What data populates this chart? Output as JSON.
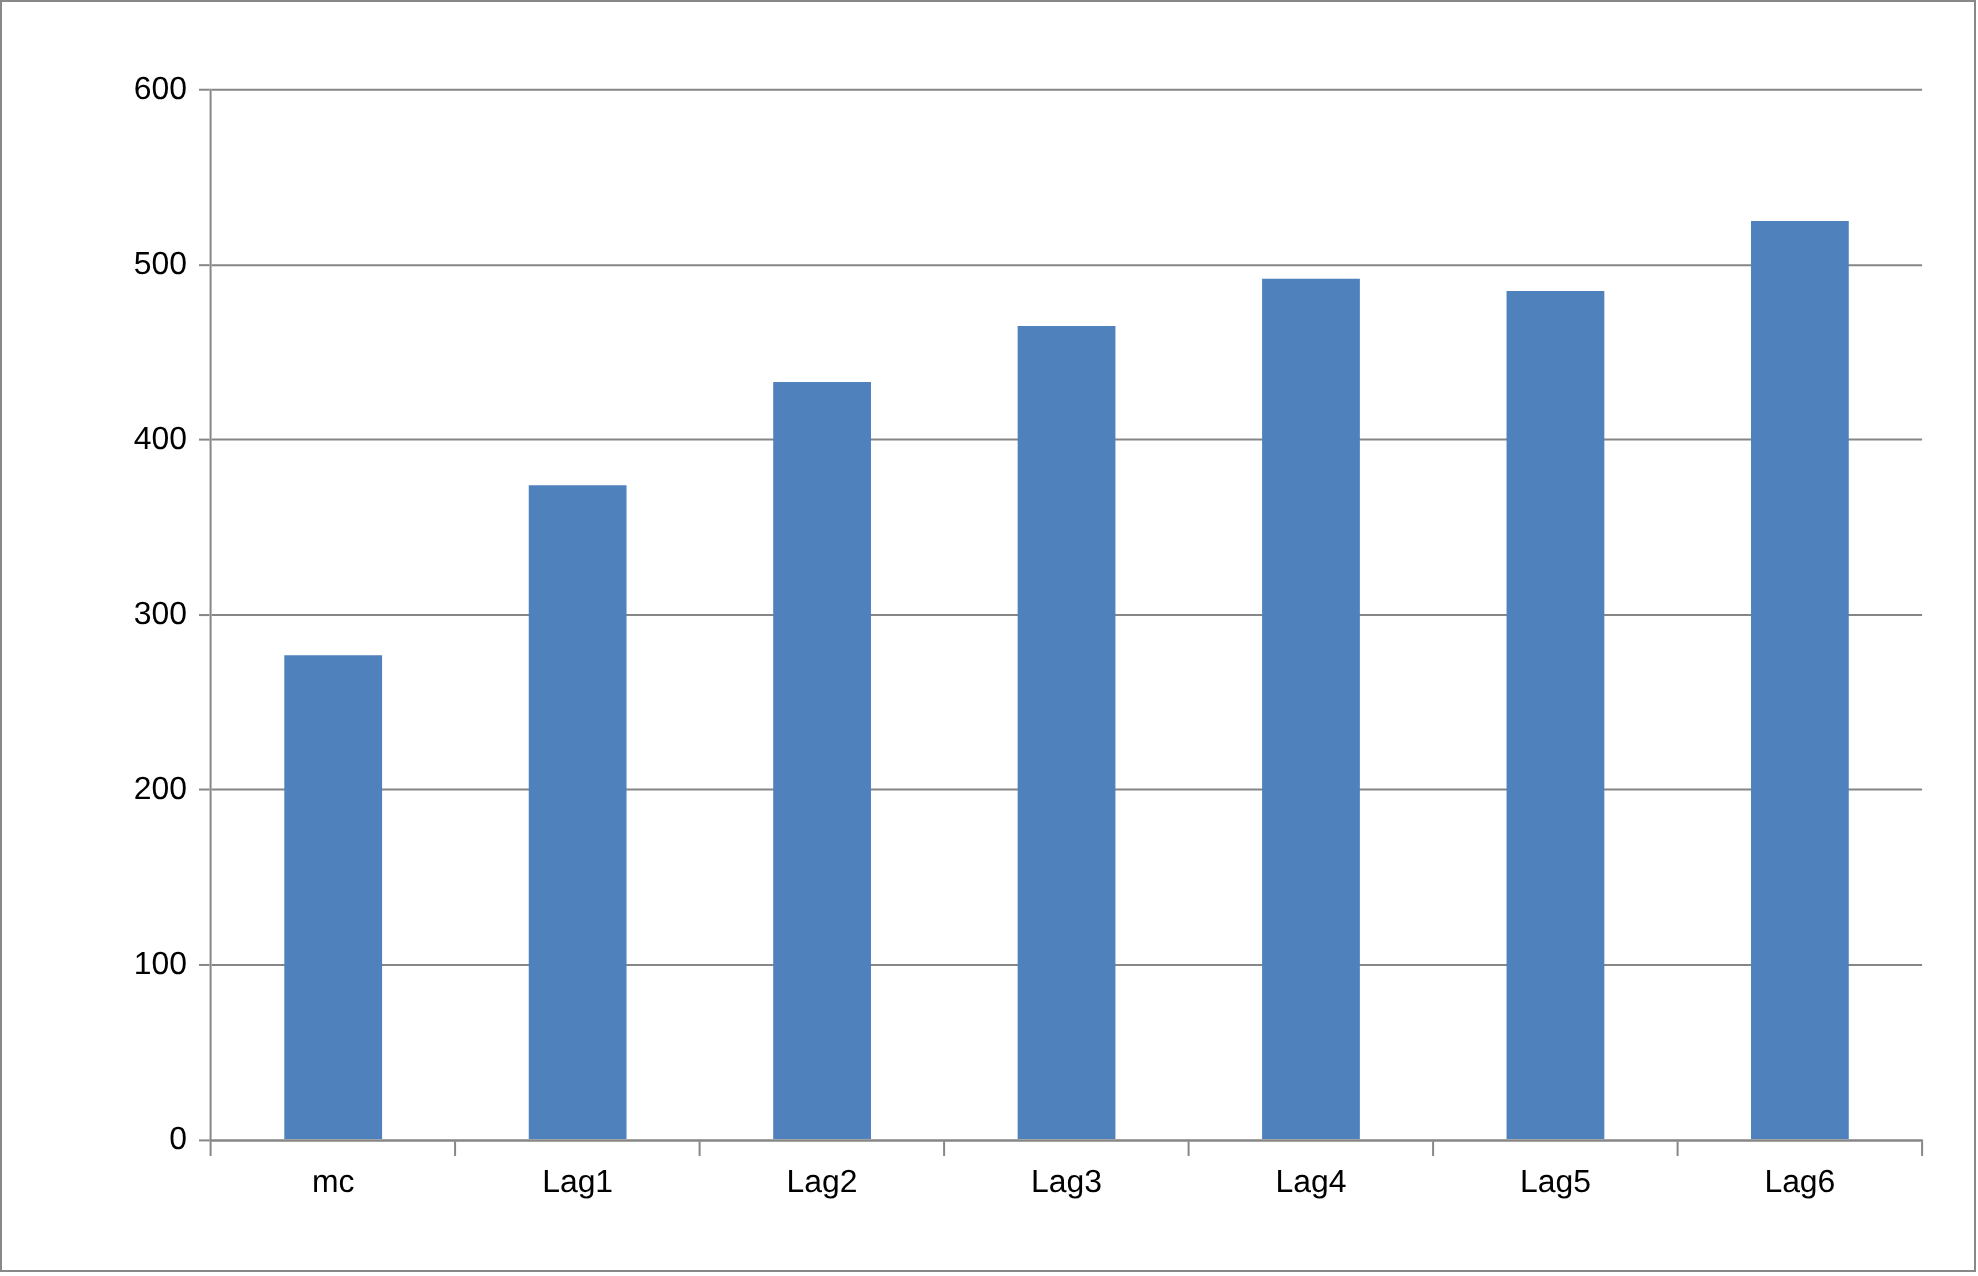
{
  "chart_data": {
    "type": "bar",
    "categories": [
      "mc",
      "Lag1",
      "Lag2",
      "Lag3",
      "Lag4",
      "Lag5",
      "Lag6"
    ],
    "values": [
      277,
      374,
      433,
      465,
      492,
      485,
      525
    ],
    "color": "#4f81bd",
    "ylim": [
      0,
      600
    ],
    "yticks": [
      0,
      100,
      200,
      300,
      400,
      500,
      600
    ],
    "grid": "y"
  }
}
